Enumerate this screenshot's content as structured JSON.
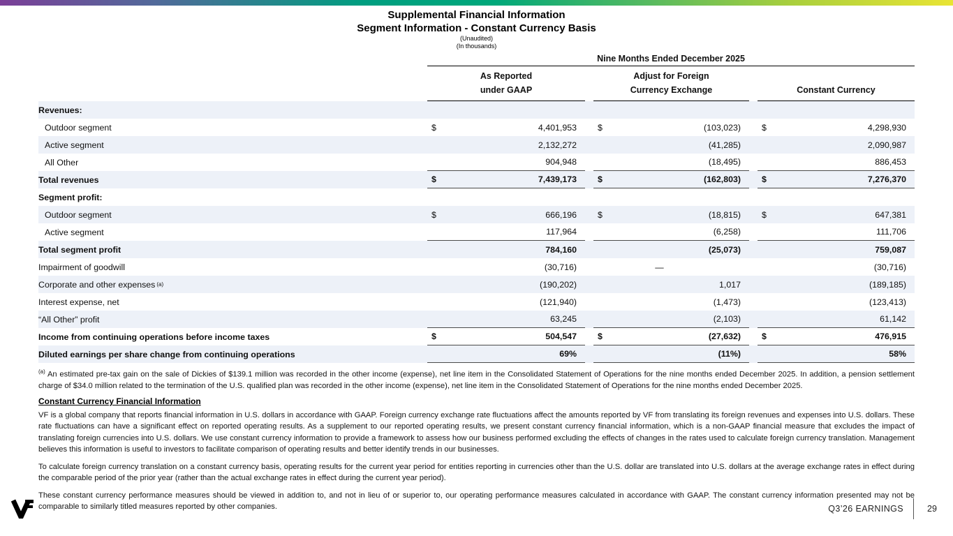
{
  "colors": {
    "row_shade": "#edf1f8",
    "gradient": [
      "#7b3f98 0%",
      "#52699a 16%",
      "#009e80 38%",
      "#00a87a 52%",
      "#57ba60 68%",
      "#a9cf3d 83%",
      "#e9e434 100%"
    ]
  },
  "header": {
    "title": "Supplemental Financial Information",
    "subtitle": "Segment Information - Constant Currency Basis",
    "note_unaudited": "(Unaudited)",
    "note_thousands": "(In thousands)"
  },
  "table": {
    "period_header": "Nine Months Ended December 2025",
    "columns": [
      {
        "line1": "As Reported",
        "line2": "under GAAP"
      },
      {
        "line1": "Adjust for Foreign",
        "line2": "Currency Exchange"
      },
      {
        "line1": "",
        "line2": "Constant Currency"
      }
    ],
    "rows": [
      {
        "label": "Revenues:",
        "bold": true,
        "shaded": true,
        "values": null
      },
      {
        "label": "Outdoor segment",
        "indent": true,
        "dollar": true,
        "values": [
          "4,401,953",
          "(103,023)",
          "4,298,930"
        ]
      },
      {
        "label": "Active segment",
        "indent": true,
        "shaded": true,
        "values": [
          "2,132,272",
          "(41,285)",
          "2,090,987"
        ]
      },
      {
        "label": "All Other",
        "indent": true,
        "values": [
          "904,948",
          "(18,495)",
          "886,453"
        ],
        "border_bottom": true
      },
      {
        "label": "Total revenues",
        "bold": true,
        "shaded": true,
        "dollar": true,
        "values": [
          "7,439,173",
          "(162,803)",
          "7,276,370"
        ],
        "border_bottom": true
      },
      {
        "label": "Segment profit:",
        "bold": true,
        "values": null
      },
      {
        "label": "Outdoor segment",
        "indent": true,
        "shaded": true,
        "dollar": true,
        "values": [
          "666,196",
          "(18,815)",
          "647,381"
        ]
      },
      {
        "label": "Active segment",
        "indent": true,
        "values": [
          "117,964",
          "(6,258)",
          "111,706"
        ],
        "border_bottom": true
      },
      {
        "label": "Total segment profit",
        "bold": true,
        "shaded": true,
        "values": [
          "784,160",
          "(25,073)",
          "759,087"
        ]
      },
      {
        "label": "Impairment of goodwill",
        "values": [
          "(30,716)",
          "—",
          "(30,716)"
        ]
      },
      {
        "label": "Corporate and other expenses",
        "sup": "(a)",
        "shaded": true,
        "values": [
          "(190,202)",
          "1,017",
          "(189,185)"
        ]
      },
      {
        "label": "Interest expense, net",
        "values": [
          "(121,940)",
          "(1,473)",
          "(123,413)"
        ]
      },
      {
        "label": "“All Other” profit",
        "shaded": true,
        "values": [
          "63,245",
          "(2,103)",
          "61,142"
        ],
        "border_bottom": true
      },
      {
        "label": "Income from continuing operations before income taxes",
        "bold": true,
        "dollar": true,
        "values": [
          "504,547",
          "(27,632)",
          "476,915"
        ],
        "border_bottom": true
      },
      {
        "label": "Diluted earnings per share change from continuing operations",
        "bold": true,
        "shaded": true,
        "values": [
          "69%",
          "(11%)",
          "58%"
        ],
        "border_bottom": true
      }
    ]
  },
  "footnote": {
    "marker": "(a)",
    "text": "An estimated pre-tax gain on the sale of Dickies of $139.1 million was recorded in the other income (expense), net line item in the Consolidated Statement of Operations for the nine months ended December 2025. In addition, a pension settlement charge of $34.0 million related to the termination of the U.S. qualified plan was recorded in the other income (expense), net line item in the Consolidated Statement of Operations for the nine months ended December 2025."
  },
  "cc_section": {
    "heading": "Constant Currency Financial Information",
    "p1": "VF is a global company that reports financial information in U.S. dollars in accordance with GAAP. Foreign currency exchange rate fluctuations affect the amounts reported by VF from translating its foreign revenues and expenses into U.S. dollars. These rate fluctuations can have a significant effect on reported operating results. As a supplement to our reported operating results, we present constant currency financial information, which is a non-GAAP financial measure that excludes the impact of translating foreign currencies into U.S. dollars. We use constant currency information to provide a framework to assess how our business performed excluding the effects of changes in the rates used to calculate foreign currency translation. Management believes this information is useful to investors to facilitate comparison of operating results and better identify trends in our businesses.",
    "p2": "To calculate foreign currency translation on a constant currency basis, operating results for the current year period for entities reporting in currencies other than the U.S. dollar are translated into U.S. dollars at the average exchange rates in effect during the comparable period of the prior year (rather than the actual exchange rates in effect during the current year period).",
    "p3": "These constant currency performance measures should be viewed in addition to, and not in lieu of or superior to, our operating performance measures calculated in accordance with GAAP. The constant currency information presented may not be comparable to similarly titled measures reported by other companies."
  },
  "footer": {
    "earnings_label": "Q3’26 EARNINGS",
    "page_number": "29"
  }
}
